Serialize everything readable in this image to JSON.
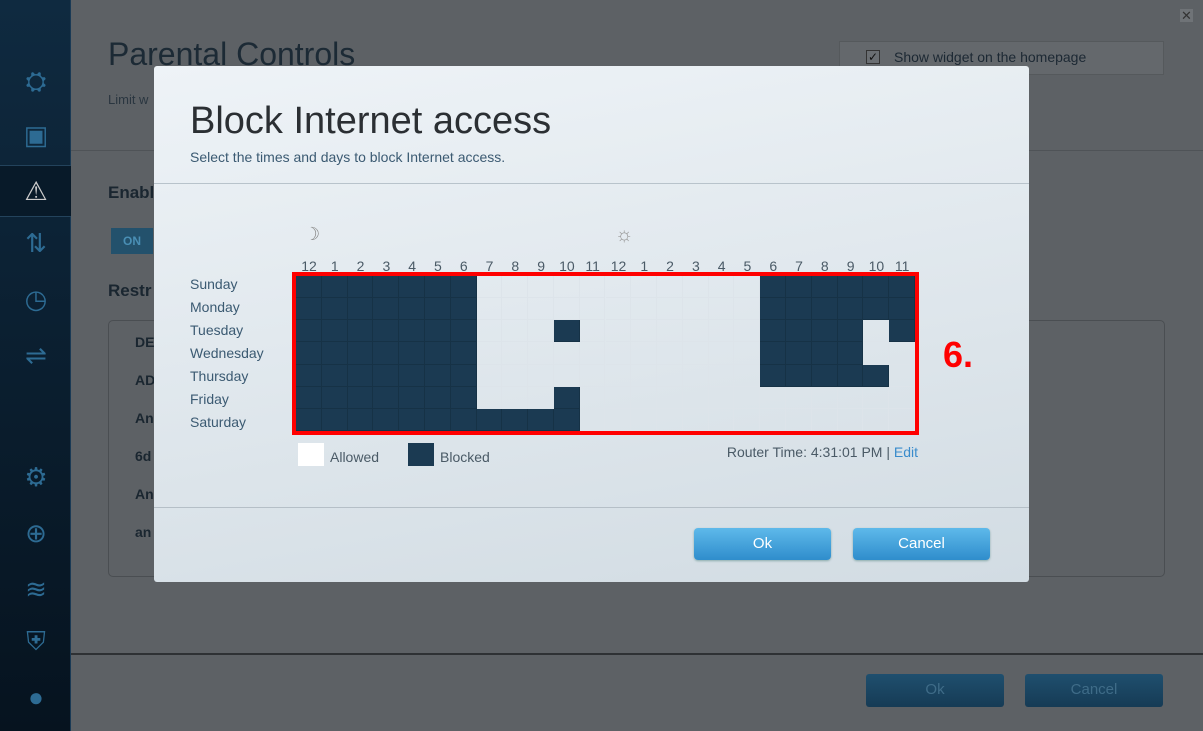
{
  "background_page": {
    "title": "Parental Controls",
    "subtitle": "Limit w",
    "enable_label": "Enabl",
    "toggle_label": "ON",
    "restrict_label": "Restr",
    "list_items": [
      "DE",
      "AD",
      "An",
      "6d",
      "An",
      "an"
    ],
    "widget_label": "Show widget on the homepage",
    "widget_checked": true,
    "ok_label": "Ok",
    "cancel_label": "Cancel"
  },
  "sidebar": {
    "icons": [
      "router-icon",
      "devices-icon",
      "parental-controls-icon",
      "media-prioritization-icon",
      "speed-test-icon",
      "usb-storage-icon",
      "settings-icon",
      "troubleshooting-icon",
      "wireless-icon",
      "security-icon",
      "linksys-smart-wifi-icon"
    ],
    "active_index": 2
  },
  "modal": {
    "title": "Block Internet access",
    "subtitle": "Select the times and days to block Internet access.",
    "hours": [
      "12",
      "1",
      "2",
      "3",
      "4",
      "5",
      "6",
      "7",
      "8",
      "9",
      "10",
      "11",
      "12",
      "1",
      "2",
      "3",
      "4",
      "5",
      "6",
      "7",
      "8",
      "9",
      "10",
      "11"
    ],
    "days": [
      "Sunday",
      "Monday",
      "Tuesday",
      "Wednesday",
      "Thursday",
      "Friday",
      "Saturday"
    ],
    "schedule": [
      "111111100000000000111111",
      "111111100000000000111111",
      "111111100010000000111101",
      "111111100000000000111100",
      "111111100000000000111110",
      "111111100010000000000000",
      "111111111110000000000000"
    ],
    "schedule_note": "1 = Blocked, 0 = Allowed; first value of Sunday row... hour columns as labeled",
    "legend_allowed": "Allowed",
    "legend_blocked": "Blocked",
    "router_time": "Router Time: 4:31:01 PM |",
    "edit_label": "Edit",
    "ok_label": "Ok",
    "cancel_label": "Cancel",
    "colors": {
      "blocked": "#1b3a52",
      "allowed": "#ffffff",
      "highlight": "#ff0000",
      "button": "#3a9ad6"
    }
  },
  "annotation": "6."
}
